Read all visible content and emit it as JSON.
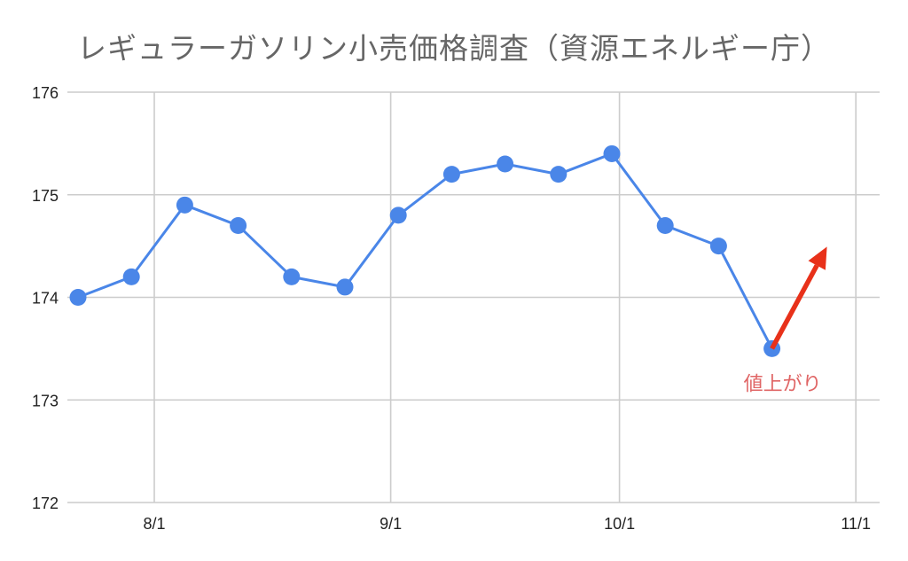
{
  "chart_data": {
    "type": "line",
    "title": "レギュラーガソリン小売価格調査（資源エネルギー庁）",
    "xlabel": "",
    "ylabel": "",
    "ylim": [
      172,
      176
    ],
    "y_ticks": [
      172,
      173,
      174,
      175,
      176
    ],
    "x_ticks": [
      "8/1",
      "9/1",
      "10/1",
      "11/1"
    ],
    "grid": true,
    "legend": "none",
    "series": [
      {
        "color": "#4a86e8",
        "x": [
          "7/22",
          "7/29",
          "8/5",
          "8/12",
          "8/19",
          "8/26",
          "9/2",
          "9/9",
          "9/16",
          "9/23",
          "9/30",
          "10/7",
          "10/14",
          "10/21"
        ],
        "values": [
          174.0,
          174.2,
          174.9,
          174.7,
          174.2,
          174.1,
          174.8,
          175.2,
          175.3,
          175.2,
          175.4,
          174.7,
          174.5,
          173.5
        ]
      }
    ],
    "annotations": [
      {
        "text": "値上がり",
        "color": "#e06666",
        "arrow_color": "#e8311a"
      }
    ]
  }
}
